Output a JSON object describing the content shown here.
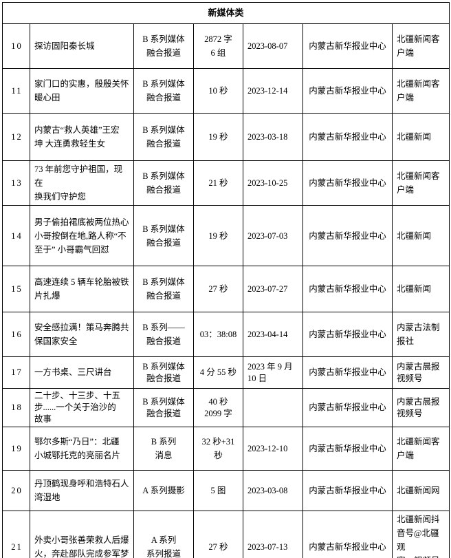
{
  "table": {
    "header": "新媒体类",
    "rows": [
      {
        "no": "10",
        "title": "探访固阳秦长城",
        "series": "B 系列媒体\n融合报道",
        "duration": "2872 字\n6 组",
        "date": "2023-08-07",
        "org": "内蒙古新华报业中心",
        "platform": "北疆新闻客\n户端"
      },
      {
        "no": "11",
        "title": "家门口的实惠，殷殷关怀\n暖心田",
        "series": "B 系列媒体\n融合报道",
        "duration": "10 秒",
        "date": "2023-12-14",
        "org": "内蒙古新华报业中心",
        "platform": "北疆新闻客\n户端"
      },
      {
        "no": "12",
        "title": "内蒙古“救人英雄”王宏\n坤 大连勇救轻生女",
        "series": "B 系列媒体\n融合报道",
        "duration": "19 秒",
        "date": "2023-03-18",
        "org": "内蒙古新华报业中心",
        "platform": "北疆新闻"
      },
      {
        "no": "13",
        "title": "73 年前您守护祖国，现在\n换我们守护您",
        "series": "B 系列媒体\n融合报道",
        "duration": "21 秒",
        "date": "2023-10-25",
        "org": "内蒙古新华报业中心",
        "platform": "北疆新闻客\n户端"
      },
      {
        "no": "14",
        "title": "男子偷拍裙底被两位热心\n小哥按倒在地,路人称“不\n至于” 小哥霸气回怼",
        "series": "B 系列媒体\n融合报道",
        "duration": "19 秒",
        "date": "2023-07-03",
        "org": "内蒙古新华报业中心",
        "platform": "北疆新闻"
      },
      {
        "no": "15",
        "title": "高速连续 5 辆车轮胎被铁\n片扎爆",
        "series": "B 系列媒体\n融合报道",
        "duration": "27 秒",
        "date": "2023-07-27",
        "org": "内蒙古新华报业中心",
        "platform": "北疆新闻"
      },
      {
        "no": "16",
        "title": "安全感拉满！策马奔腾共\n保国家安全",
        "series": "B 系列——\n融合报道",
        "duration": "03：38:08",
        "date": "2023-04-14",
        "org": "内蒙古新华报业中心",
        "platform": "内蒙古法制\n报社"
      },
      {
        "no": "17",
        "title": "一方书桌、三尺讲台",
        "series": "B 系列媒体\n融合报道",
        "duration": "4 分 55 秒",
        "date": "2023 年 9 月\n10 日",
        "org": "内蒙古新华报业中心",
        "platform": "内蒙古晨报\n视频号"
      },
      {
        "no": "18",
        "title": "二十步、十三步、十五\n步......一个关于治沙的\n故事",
        "series": "B 系列媒体\n融合报道",
        "duration": "40 秒\n2099 字",
        "date": "",
        "org": "内蒙古新华报业中心",
        "platform": "内蒙古晨报\n视频号"
      },
      {
        "no": "19",
        "title": "鄂尔多斯“乃日”：北疆\n小城鄂托克的亮丽名片",
        "series": "B 系列\n消息",
        "duration": "32 秒+31 秒",
        "date": "2023-12-10",
        "org": "内蒙古新华报业中心",
        "platform": "北疆新闻客\n户端"
      },
      {
        "no": "20",
        "title": "丹顶鹤现身呼和浩特石人\n湾湿地",
        "series": "A 系列摄影",
        "duration": "5 图",
        "date": "2023-03-08",
        "org": "内蒙古新华报业中心",
        "platform": "北疆新闻网"
      },
      {
        "no": "21",
        "title": "外卖小哥张善荣救人后爆\n火，奔赴部队完成参军梦",
        "series": "A 系列\n系列报道",
        "duration": "27 秒",
        "date": "2023-07-13",
        "org": "内蒙古新华报业中心",
        "platform": "北疆新闻抖\n音号@北疆观\n察、视频号@"
      }
    ]
  }
}
